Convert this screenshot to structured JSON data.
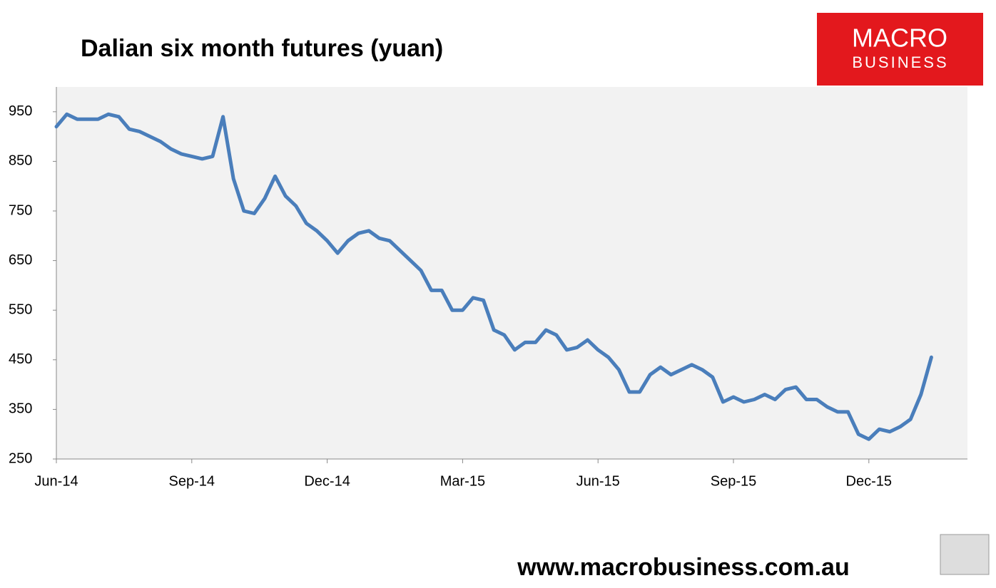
{
  "chart_data": {
    "type": "line",
    "title": "Dalian six month futures (yuan)",
    "categories": [
      "Jun-14",
      null,
      null,
      null,
      null,
      null,
      null,
      null,
      null,
      null,
      null,
      null,
      null,
      "Sep-14",
      null,
      null,
      null,
      null,
      null,
      null,
      null,
      null,
      null,
      null,
      null,
      null,
      "Dec-14",
      null,
      null,
      null,
      null,
      null,
      null,
      null,
      null,
      null,
      null,
      null,
      null,
      "Mar-15",
      null,
      null,
      null,
      null,
      null,
      null,
      null,
      null,
      null,
      null,
      null,
      null,
      "Jun-15",
      null,
      null,
      null,
      null,
      null,
      null,
      null,
      null,
      null,
      null,
      null,
      null,
      "Sep-15",
      null,
      null,
      null,
      null,
      null,
      null,
      null,
      null,
      null,
      null,
      null,
      null,
      "Dec-15",
      null,
      null,
      null,
      null,
      null,
      null
    ],
    "series": [
      {
        "color": "#4a7ebb",
        "values": [
          920,
          945,
          935,
          935,
          935,
          945,
          940,
          915,
          910,
          900,
          890,
          875,
          865,
          860,
          855,
          860,
          940,
          815,
          750,
          745,
          775,
          820,
          780,
          760,
          725,
          710,
          690,
          665,
          690,
          705,
          710,
          695,
          690,
          670,
          650,
          630,
          590,
          590,
          550,
          550,
          575,
          570,
          510,
          500,
          470,
          485,
          485,
          510,
          500,
          470,
          475,
          490,
          470,
          455,
          430,
          385,
          385,
          420,
          435,
          420,
          430,
          440,
          430,
          415,
          365,
          375,
          365,
          370,
          380,
          370,
          390,
          395,
          370,
          370,
          355,
          345,
          345,
          300,
          290,
          310,
          305,
          315,
          330,
          380,
          455
        ]
      }
    ],
    "ylim": [
      250,
      1000
    ],
    "yticks": [
      250,
      350,
      450,
      550,
      650,
      750,
      850,
      950
    ]
  },
  "logo": {
    "line1": "MACRO",
    "line2": "BUSINESS"
  },
  "footer_url": "www.macrobusiness.com.au"
}
